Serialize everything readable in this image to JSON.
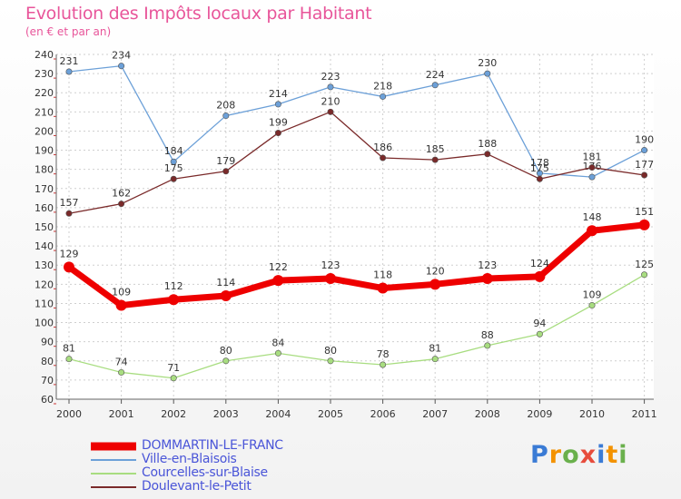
{
  "chart_data": {
    "type": "line",
    "title": "Evolution des Impôts locaux par Habitant",
    "subtitle": "(en € et par an)",
    "x": [
      "2000",
      "2001",
      "2002",
      "2003",
      "2004",
      "2005",
      "2006",
      "2007",
      "2008",
      "2009",
      "2010",
      "2011"
    ],
    "ylim": [
      60,
      240
    ],
    "yticks": [
      60,
      70,
      80,
      90,
      100,
      110,
      120,
      130,
      140,
      150,
      160,
      170,
      180,
      190,
      200,
      210,
      220,
      230,
      240
    ],
    "grid": true,
    "legend_position": "bottom-left",
    "series": [
      {
        "name": "DOMMARTIN-LE-FRANC",
        "color": "#ee0000",
        "values": [
          129,
          109,
          112,
          114,
          122,
          123,
          118,
          120,
          123,
          124,
          148,
          151
        ]
      },
      {
        "name": "Ville-en-Blaisois",
        "color": "#6ca0d8",
        "values": [
          231,
          234,
          184,
          208,
          214,
          223,
          218,
          224,
          230,
          178,
          176,
          190
        ]
      },
      {
        "name": "Courcelles-sur-Blaise",
        "color": "#a8dd80",
        "values": [
          81,
          74,
          71,
          80,
          84,
          80,
          78,
          81,
          88,
          94,
          109,
          125
        ]
      },
      {
        "name": "Doulevant-le-Petit",
        "color": "#7a2a2a",
        "values": [
          157,
          162,
          175,
          179,
          199,
          210,
          186,
          185,
          188,
          175,
          181,
          177
        ]
      }
    ]
  },
  "brand": {
    "letters": [
      "P",
      "r",
      "o",
      "x",
      "i",
      "t",
      "i"
    ]
  }
}
